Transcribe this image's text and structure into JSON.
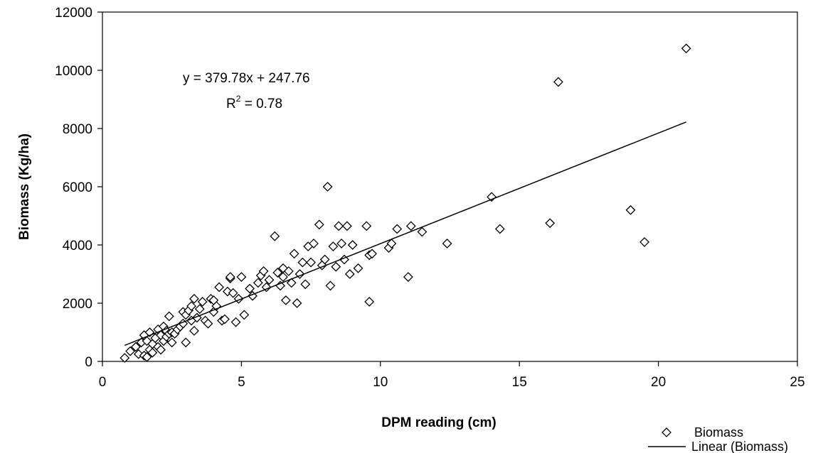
{
  "chart_data": {
    "type": "scatter",
    "xlabel": "DPM reading (cm)",
    "ylabel": "Biomass (Kg/ha)",
    "xlim": [
      0,
      25
    ],
    "ylim": [
      0,
      12000
    ],
    "xticks": [
      0,
      5,
      10,
      15,
      20,
      25
    ],
    "yticks": [
      0,
      2000,
      4000,
      6000,
      8000,
      10000,
      12000
    ],
    "grid": false,
    "legend_position": "bottom-right",
    "annotation": {
      "equation": "y = 379.78x + 247.76",
      "r_squared_prefix": "R",
      "r_squared_sup": "2",
      "r_squared_value": " = 0.78"
    },
    "series": [
      {
        "name": "Biomass",
        "marker": "diamond",
        "points": [
          [
            0.8,
            120
          ],
          [
            1.0,
            350
          ],
          [
            1.2,
            500
          ],
          [
            1.3,
            250
          ],
          [
            1.4,
            650
          ],
          [
            1.5,
            900
          ],
          [
            1.5,
            200
          ],
          [
            1.6,
            150
          ],
          [
            1.6,
            700
          ],
          [
            1.7,
            400
          ],
          [
            1.7,
            1000
          ],
          [
            1.8,
            600
          ],
          [
            1.8,
            300
          ],
          [
            1.9,
            800
          ],
          [
            2.0,
            1100
          ],
          [
            2.0,
            500
          ],
          [
            2.1,
            900
          ],
          [
            2.1,
            400
          ],
          [
            2.2,
            1200
          ],
          [
            2.2,
            700
          ],
          [
            2.3,
            1050
          ],
          [
            2.3,
            850
          ],
          [
            2.4,
            950
          ],
          [
            2.4,
            1550
          ],
          [
            2.5,
            1000
          ],
          [
            2.5,
            650
          ],
          [
            2.6,
            950
          ],
          [
            2.7,
            1100
          ],
          [
            2.8,
            1200
          ],
          [
            2.9,
            1700
          ],
          [
            2.9,
            1300
          ],
          [
            3.0,
            650
          ],
          [
            3.0,
            1600
          ],
          [
            3.1,
            1750
          ],
          [
            3.2,
            1400
          ],
          [
            3.2,
            1900
          ],
          [
            3.3,
            2150
          ],
          [
            3.3,
            1050
          ],
          [
            3.4,
            1500
          ],
          [
            3.5,
            1800
          ],
          [
            3.6,
            2050
          ],
          [
            3.7,
            1400
          ],
          [
            3.8,
            1300
          ],
          [
            3.9,
            2150
          ],
          [
            4.0,
            1700
          ],
          [
            4.0,
            2100
          ],
          [
            4.1,
            1900
          ],
          [
            4.2,
            2550
          ],
          [
            4.3,
            1400
          ],
          [
            4.4,
            1450
          ],
          [
            4.5,
            2400
          ],
          [
            4.6,
            2850
          ],
          [
            4.6,
            2900
          ],
          [
            4.7,
            2350
          ],
          [
            4.8,
            1350
          ],
          [
            4.9,
            2150
          ],
          [
            5.0,
            2900
          ],
          [
            5.1,
            1600
          ],
          [
            5.3,
            2500
          ],
          [
            5.4,
            2250
          ],
          [
            5.6,
            2700
          ],
          [
            5.7,
            2950
          ],
          [
            5.8,
            3100
          ],
          [
            5.9,
            2550
          ],
          [
            6.0,
            2800
          ],
          [
            6.2,
            4300
          ],
          [
            6.3,
            3050
          ],
          [
            6.4,
            2600
          ],
          [
            6.5,
            2900
          ],
          [
            6.5,
            3200
          ],
          [
            6.6,
            2100
          ],
          [
            6.7,
            3100
          ],
          [
            6.8,
            2700
          ],
          [
            6.9,
            3700
          ],
          [
            7.0,
            2000
          ],
          [
            7.1,
            3000
          ],
          [
            7.2,
            3400
          ],
          [
            7.3,
            2650
          ],
          [
            7.4,
            3950
          ],
          [
            7.5,
            3400
          ],
          [
            7.6,
            4050
          ],
          [
            7.8,
            4700
          ],
          [
            7.9,
            3300
          ],
          [
            8.0,
            3500
          ],
          [
            8.1,
            6000
          ],
          [
            8.2,
            2600
          ],
          [
            8.3,
            3950
          ],
          [
            8.4,
            3250
          ],
          [
            8.5,
            4650
          ],
          [
            8.6,
            4050
          ],
          [
            8.7,
            3500
          ],
          [
            8.8,
            4650
          ],
          [
            8.9,
            3000
          ],
          [
            9.0,
            4000
          ],
          [
            9.2,
            3200
          ],
          [
            9.5,
            4650
          ],
          [
            9.6,
            3650
          ],
          [
            9.6,
            2050
          ],
          [
            9.7,
            3700
          ],
          [
            10.3,
            3900
          ],
          [
            10.4,
            4050
          ],
          [
            10.6,
            4550
          ],
          [
            11.0,
            2900
          ],
          [
            11.1,
            4650
          ],
          [
            11.5,
            4450
          ],
          [
            12.4,
            4050
          ],
          [
            14.0,
            5650
          ],
          [
            14.3,
            4550
          ],
          [
            16.1,
            4750
          ],
          [
            16.4,
            9600
          ],
          [
            19.0,
            5200
          ],
          [
            19.5,
            4100
          ],
          [
            21.0,
            10750
          ]
        ]
      },
      {
        "name": "Linear (Biomass)",
        "type": "line",
        "slope": 379.78,
        "intercept": 247.76,
        "x_range": [
          0.8,
          21.0
        ]
      }
    ]
  }
}
